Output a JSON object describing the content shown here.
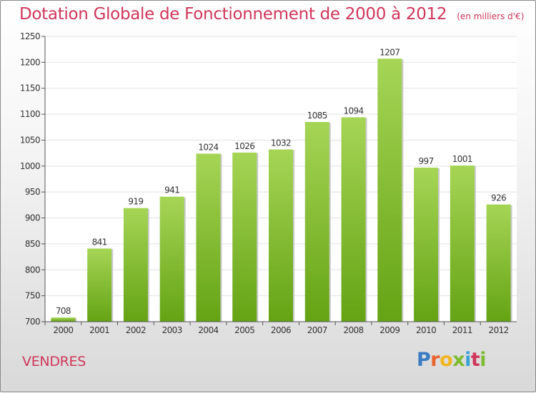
{
  "header": {
    "title": "Dotation Globale de Fonctionnement de 2000 à 2012",
    "subtitle": "(en milliers d'€)"
  },
  "footer": {
    "place": "VENDRES",
    "logo": "Proxiti",
    "logo_colors": [
      "#3a7cc4",
      "#e8642c",
      "#f0b61e",
      "#7dbb2e",
      "#3aa1d8",
      "#d0365a",
      "#7dbb2e"
    ]
  },
  "colors": {
    "bar_light": "#a6d556",
    "bar_dark": "#64a314",
    "title": "#d0365a",
    "grid": "#e2e2e2",
    "axis": "#555555"
  },
  "chart_data": {
    "type": "bar",
    "categories": [
      "2000",
      "2001",
      "2002",
      "2003",
      "2004",
      "2005",
      "2006",
      "2007",
      "2008",
      "2009",
      "2010",
      "2011",
      "2012"
    ],
    "values": [
      708,
      841,
      919,
      941,
      1024,
      1026,
      1032,
      1085,
      1094,
      1207,
      997,
      1001,
      926
    ],
    "ylim": [
      700,
      1250
    ],
    "yticks": [
      700,
      750,
      800,
      850,
      900,
      950,
      1000,
      1050,
      1100,
      1150,
      1200,
      1250
    ],
    "grid": true,
    "title": "Dotation Globale de Fonctionnement de 2000 à 2012",
    "subtitle": "(en milliers d'€)"
  }
}
